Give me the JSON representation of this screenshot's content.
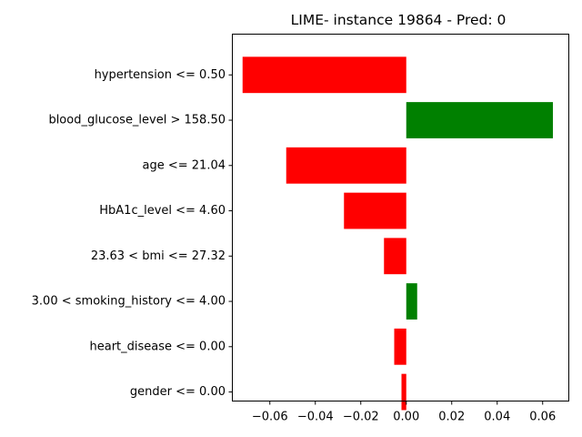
{
  "chart_data": {
    "type": "bar",
    "orientation": "horizontal",
    "title": "LIME- instance 19864 - Pred: 0",
    "xlabel": "",
    "ylabel": "",
    "xlim": [
      -0.0765,
      0.0715
    ],
    "xticks": [
      -0.06,
      -0.04,
      -0.02,
      0.0,
      0.02,
      0.04,
      0.06
    ],
    "xtick_labels": [
      "−0.06",
      "−0.04",
      "−0.02",
      "0.00",
      "0.02",
      "0.04",
      "0.06"
    ],
    "categories": [
      "hypertension <= 0.50",
      "blood_glucose_level > 158.50",
      "age <= 21.04",
      "HbA1c_level <= 4.60",
      "23.63 < bmi <= 27.32",
      "3.00 < smoking_history <= 4.00",
      "heart_disease <= 0.00",
      "gender <= 0.00"
    ],
    "values": [
      -0.072,
      0.0645,
      -0.0528,
      -0.0274,
      -0.0098,
      0.0048,
      -0.0053,
      -0.0021
    ],
    "colors": {
      "positive": "#008000",
      "negative": "#ff0000"
    },
    "grid": false,
    "legend": false
  }
}
